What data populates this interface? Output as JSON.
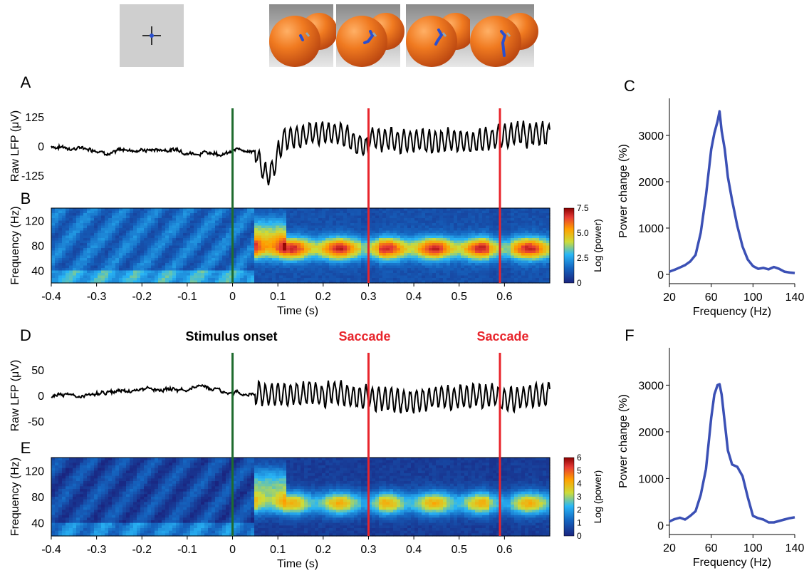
{
  "colors": {
    "stimulus_line": "#1e6b2e",
    "saccade_line": "#e8242b",
    "spectrum_line": "#3b50b5",
    "trace": "#000000",
    "fixation_bg": "#cfcfcf",
    "orange": "#e8601c"
  },
  "stimulus_strip": {
    "frames": [
      "fixation-cross",
      "orange-gaze-1",
      "orange-gaze-2",
      "orange-gaze-3",
      "orange-gaze-4"
    ]
  },
  "events": {
    "stimulus_label": "Stimulus onset",
    "saccade_label": "Saccade",
    "stimulus_time": 0,
    "saccade_times": [
      0.3,
      0.59
    ]
  },
  "chart_data": [
    {
      "panel": "A",
      "type": "line",
      "ylabel": "Raw LFP (μV)",
      "yticks": [
        "125",
        "0",
        "-125"
      ],
      "yrange": [
        -150,
        140
      ],
      "xrange": [
        -0.4,
        0.7
      ],
      "trace_seed": 7,
      "trace_amplitude": "large"
    },
    {
      "panel": "B",
      "type": "heatmap",
      "ylabel": "Frequency (Hz)",
      "xlabel": "Time (s)",
      "yticks": [
        40,
        80,
        120
      ],
      "yrange": [
        20,
        140
      ],
      "xticks": [
        "-0.4",
        "-0.3",
        "-0.2",
        "-0.1",
        "0",
        "0.1",
        "0.2",
        "0.3",
        "0.4",
        "0.5",
        "0.6"
      ],
      "xrange": [
        -0.4,
        0.7
      ],
      "colorbar": {
        "label": "Log (power)",
        "ticks": [
          "7.5",
          "5.0",
          "2.5",
          "0"
        ],
        "max": 7.5
      },
      "gamma_peak_hz": 75,
      "pre_level": 0.18,
      "post_level": 0.72
    },
    {
      "panel": "C",
      "type": "line",
      "xlabel": "Frequency (Hz)",
      "ylabel": "Power change (%)",
      "xticks": [
        20,
        60,
        100,
        140
      ],
      "yticks": [
        0,
        1000,
        2000,
        3000
      ],
      "xrange": [
        20,
        140
      ],
      "yrange": [
        -200,
        3800
      ],
      "x": [
        20,
        25,
        30,
        35,
        40,
        45,
        50,
        55,
        60,
        63,
        66,
        68,
        70,
        73,
        76,
        80,
        85,
        90,
        95,
        100,
        105,
        110,
        115,
        120,
        125,
        130,
        135,
        140
      ],
      "y": [
        60,
        100,
        150,
        200,
        280,
        420,
        900,
        1700,
        2700,
        3050,
        3300,
        3520,
        3100,
        2700,
        2100,
        1600,
        1050,
        600,
        320,
        180,
        120,
        140,
        110,
        160,
        120,
        60,
        40,
        30
      ]
    },
    {
      "panel": "D",
      "type": "line",
      "ylabel": "Raw LFP (μV)",
      "yticks": [
        "50",
        "0",
        "-50"
      ],
      "yrange": [
        -60,
        60
      ],
      "xrange": [
        -0.4,
        0.7
      ],
      "trace_seed": 21,
      "trace_amplitude": "medium"
    },
    {
      "panel": "E",
      "type": "heatmap",
      "ylabel": "Frequency (Hz)",
      "xlabel": "Time (s)",
      "yticks": [
        40,
        80,
        120
      ],
      "yrange": [
        20,
        140
      ],
      "xticks": [
        "-0.4",
        "-0.3",
        "-0.2",
        "-0.1",
        "0",
        "0.1",
        "0.2",
        "0.3",
        "0.4",
        "0.5",
        "0.6"
      ],
      "xrange": [
        -0.4,
        0.7
      ],
      "colorbar": {
        "label": "Log (power)",
        "ticks": [
          "6",
          "5",
          "4",
          "3",
          "2",
          "1",
          "0"
        ],
        "max": 6
      },
      "gamma_peak_hz": 70,
      "pre_level": 0.08,
      "post_level": 0.55
    },
    {
      "panel": "F",
      "type": "line",
      "xlabel": "Frequency (Hz)",
      "ylabel": "Power change (%)",
      "xticks": [
        20,
        60,
        100,
        140
      ],
      "yticks": [
        0,
        1000,
        2000,
        3000
      ],
      "xrange": [
        20,
        140
      ],
      "yrange": [
        -200,
        3800
      ],
      "x": [
        20,
        25,
        30,
        35,
        40,
        45,
        50,
        55,
        60,
        63,
        66,
        68,
        70,
        73,
        76,
        80,
        85,
        90,
        95,
        100,
        105,
        110,
        115,
        120,
        125,
        130,
        135,
        140
      ],
      "y": [
        80,
        130,
        160,
        120,
        200,
        300,
        650,
        1200,
        2300,
        2800,
        3000,
        3020,
        2800,
        2200,
        1600,
        1300,
        1250,
        1050,
        600,
        200,
        150,
        120,
        60,
        60,
        90,
        120,
        150,
        170
      ]
    }
  ]
}
